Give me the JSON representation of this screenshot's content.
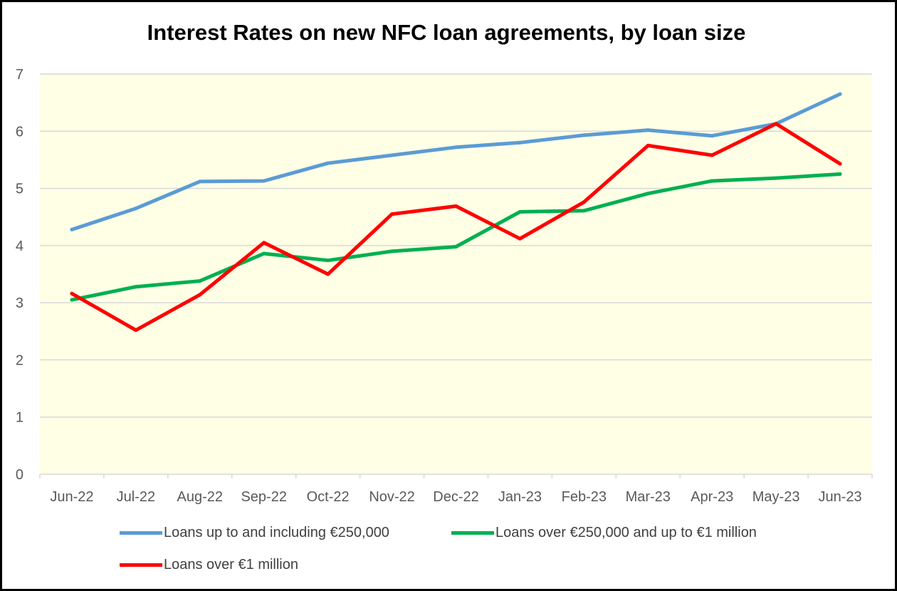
{
  "chart_data": {
    "type": "line",
    "title": "Interest Rates on new NFC loan agreements, by loan size",
    "categories": [
      "Jun-22",
      "Jul-22",
      "Aug-22",
      "Sep-22",
      "Oct-22",
      "Nov-22",
      "Dec-22",
      "Jan-23",
      "Feb-23",
      "Mar-23",
      "Apr-23",
      "May-23",
      "Jun-23"
    ],
    "ylim": [
      0,
      7
    ],
    "yticks": [
      "0",
      "1",
      "2",
      "3",
      "4",
      "5",
      "6",
      "7"
    ],
    "grid": true,
    "legend_position": "bottom",
    "plot_background": "#FFFFE6",
    "series": [
      {
        "name": "Loans up to and including €250,000",
        "color": "#5B9BD5",
        "values": [
          4.28,
          4.65,
          5.12,
          5.13,
          5.44,
          5.58,
          5.72,
          5.8,
          5.93,
          6.02,
          5.92,
          6.13,
          6.65
        ]
      },
      {
        "name": "Loans over €250,000 and up to €1 million",
        "color": "#00B050",
        "values": [
          3.05,
          3.28,
          3.38,
          3.86,
          3.74,
          3.9,
          3.98,
          4.59,
          4.61,
          4.91,
          5.13,
          5.18,
          5.25
        ]
      },
      {
        "name": "Loans over €1 million",
        "color": "#FF0000",
        "values": [
          3.16,
          2.52,
          3.14,
          4.05,
          3.5,
          4.55,
          4.69,
          4.12,
          4.76,
          5.75,
          5.58,
          6.13,
          5.43
        ]
      }
    ]
  }
}
